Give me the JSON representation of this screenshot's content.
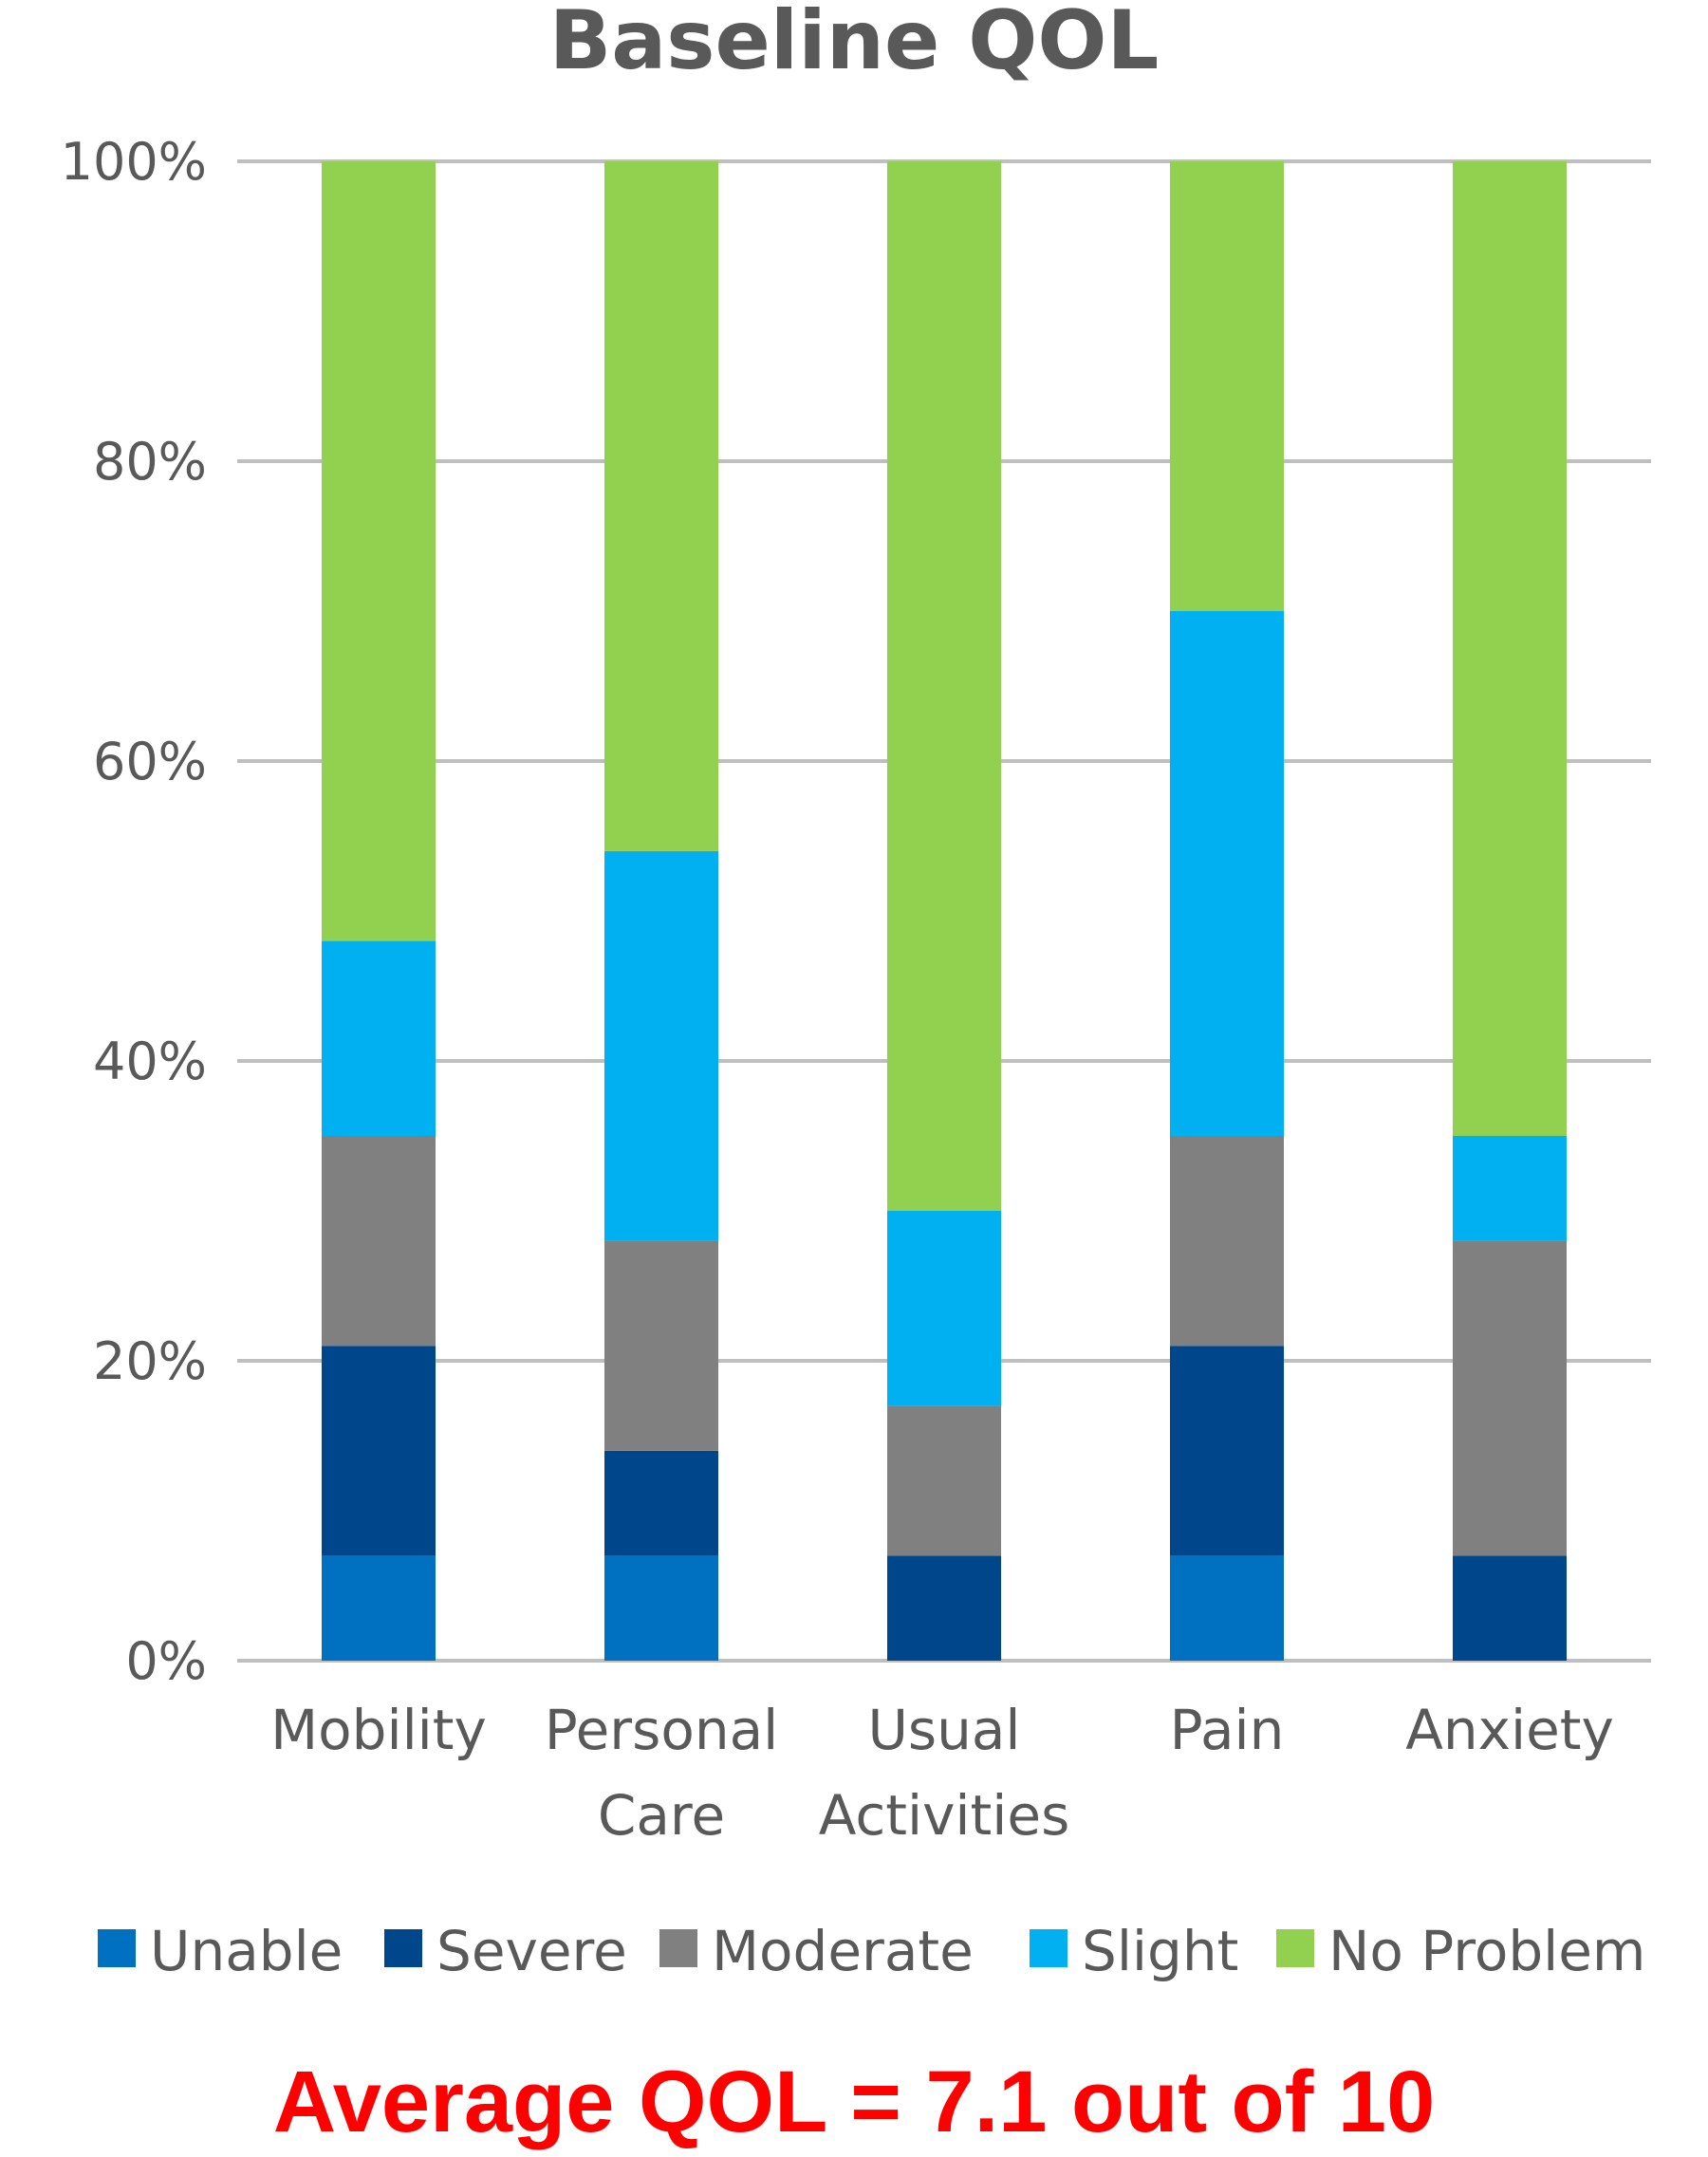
{
  "chart_data": {
    "type": "bar",
    "stacked": true,
    "title": "Baseline QOL",
    "categories": [
      [
        "Mobility"
      ],
      [
        "Personal",
        "Care"
      ],
      [
        "Usual",
        "Activities"
      ],
      [
        "Pain"
      ],
      [
        "Anxiety"
      ]
    ],
    "series": [
      {
        "name": "Unable",
        "color": "#0070C0",
        "values": [
          7,
          7,
          0,
          7,
          0
        ]
      },
      {
        "name": "Severe",
        "color": "#00468B",
        "values": [
          14,
          7,
          7,
          14,
          7
        ]
      },
      {
        "name": "Moderate",
        "color": "#808080",
        "values": [
          14,
          14,
          10,
          14,
          21
        ]
      },
      {
        "name": "Slight",
        "color": "#00B0F0",
        "values": [
          13,
          26,
          13,
          35,
          7
        ]
      },
      {
        "name": "No Problem",
        "color": "#92D050",
        "values": [
          52,
          46,
          70,
          30,
          65
        ]
      }
    ],
    "yticks": [
      "0%",
      "20%",
      "40%",
      "60%",
      "80%",
      "100%"
    ],
    "ylim": [
      0,
      100
    ],
    "grid": true,
    "legend_position": "bottom"
  },
  "footer": {
    "note": "Average QOL = 7.1 out of 10"
  }
}
